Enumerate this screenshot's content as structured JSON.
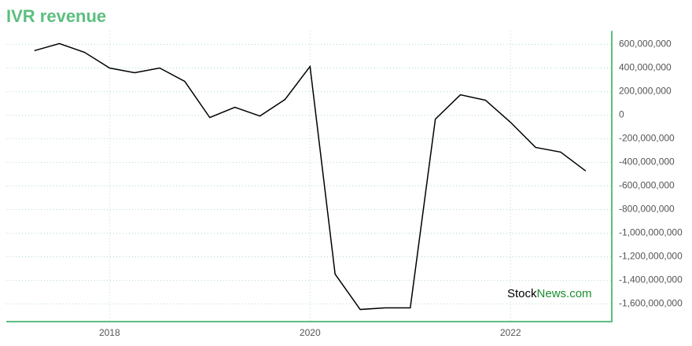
{
  "chart_data": {
    "type": "line",
    "title": "IVR revenue",
    "watermark": [
      "Stock",
      "News.com"
    ],
    "x": [
      2017.25,
      2017.5,
      2017.75,
      2018,
      2018.25,
      2018.5,
      2018.75,
      2019,
      2019.25,
      2019.5,
      2019.75,
      2020,
      2020.25,
      2020.5,
      2020.75,
      2021,
      2021.25,
      2021.5,
      2021.75,
      2022,
      2022.25,
      2022.5,
      2022.75
    ],
    "series": [
      {
        "name": "IVR revenue",
        "color": "#000000",
        "values": [
          547000000,
          607000000,
          533000000,
          400000000,
          360000000,
          400000000,
          287000000,
          -20000000,
          67000000,
          -7000000,
          133000000,
          413000000,
          -1347000000,
          -1647000000,
          -1633000000,
          -1633000000,
          -33000000,
          173000000,
          127000000,
          -60000000,
          -273000000,
          -313000000,
          -473000000
        ]
      }
    ],
    "xlim": [
      2016.97,
      2023.01
    ],
    "xticks": [
      2018,
      2020,
      2022
    ],
    "ylim": [
      -1750000000,
      715000000
    ],
    "yticks": [
      {
        "value": 600000000,
        "label": "600,000,000"
      },
      {
        "value": 400000000,
        "label": "400,000,000"
      },
      {
        "value": 200000000,
        "label": "200,000,000"
      },
      0,
      {
        "value": -200000000,
        "label": "-200,000,000"
      },
      {
        "value": -400000000,
        "label": "-400,000,000"
      },
      {
        "value": -600000000,
        "label": "-600,000,000"
      },
      {
        "value": -800000000,
        "label": "-800,000,000"
      },
      {
        "value": -1000000000,
        "label": "-1,000,000,000"
      },
      {
        "value": -1200000000,
        "label": "-1,200,000,000"
      },
      {
        "value": -1400000000,
        "label": "-1,400,000,000"
      },
      {
        "value": -1600000000,
        "label": "-1,600,000,000"
      }
    ],
    "grid": true,
    "axis_color": "#5cbf7f"
  }
}
